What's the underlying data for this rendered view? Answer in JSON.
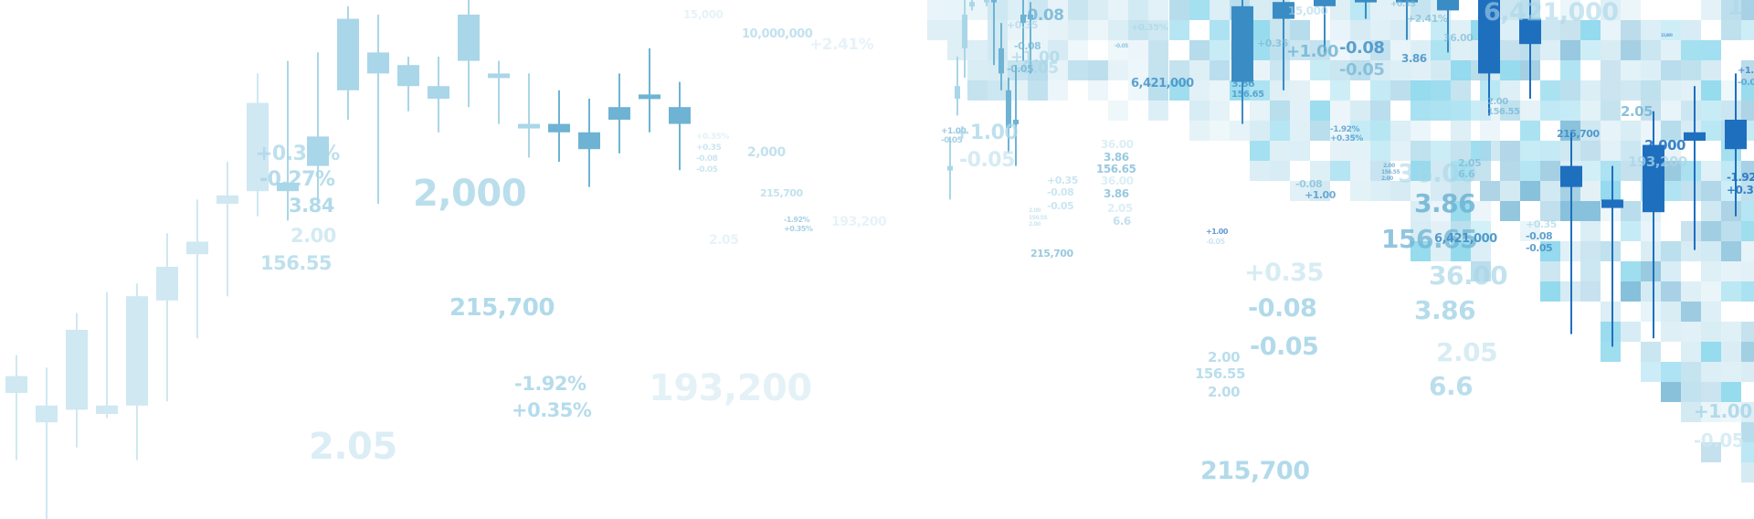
{
  "palette": {
    "pale": "#cfe8f2",
    "light": "#a9d6e8",
    "mid": "#6eb3d3",
    "deep": "#3a8cc4",
    "strong": "#1f6fbf",
    "cyan": "#7fd3ea"
  },
  "candle_series_left": [
    {
      "o": 3.0,
      "c": 3.4,
      "h": 3.9,
      "l": 1.4
    },
    {
      "o": 2.7,
      "c": 2.3,
      "h": 3.6,
      "l": 0.0
    },
    {
      "o": 2.6,
      "c": 4.5,
      "h": 4.9,
      "l": 1.7
    },
    {
      "o": 2.5,
      "c": 2.7,
      "h": 5.4,
      "l": 2.4
    },
    {
      "o": 2.7,
      "c": 5.3,
      "h": 5.6,
      "l": 1.4
    },
    {
      "o": 5.2,
      "c": 6.0,
      "h": 6.8,
      "l": 2.8
    },
    {
      "o": 6.3,
      "c": 6.6,
      "h": 7.6,
      "l": 4.3
    },
    {
      "o": 7.5,
      "c": 7.7,
      "h": 8.5,
      "l": 5.3
    },
    {
      "o": 7.8,
      "c": 9.9,
      "h": 10.6,
      "l": 7.2
    },
    {
      "o": 8.0,
      "c": 7.8,
      "h": 10.9,
      "l": 7.1
    },
    {
      "o": 8.4,
      "c": 9.1,
      "h": 11.1,
      "l": 7.6
    },
    {
      "o": 10.2,
      "c": 11.9,
      "h": 12.2,
      "l": 9.5
    },
    {
      "o": 11.1,
      "c": 10.6,
      "h": 12.0,
      "l": 7.5
    },
    {
      "o": 10.8,
      "c": 10.3,
      "h": 11.0,
      "l": 9.7
    },
    {
      "o": 10.3,
      "c": 10.0,
      "h": 11.0,
      "l": 9.2
    },
    {
      "o": 10.9,
      "c": 12.0,
      "h": 12.4,
      "l": 9.8
    },
    {
      "o": 10.6,
      "c": 10.5,
      "h": 10.9,
      "l": 9.4
    },
    {
      "o": 9.4,
      "c": 9.3,
      "h": 10.6,
      "l": 8.6
    },
    {
      "o": 9.4,
      "c": 9.2,
      "h": 10.2,
      "l": 8.5
    },
    {
      "o": 9.2,
      "c": 8.8,
      "h": 10.0,
      "l": 7.9
    },
    {
      "o": 9.5,
      "c": 9.8,
      "h": 10.6,
      "l": 8.7
    },
    {
      "o": 10.0,
      "c": 10.1,
      "h": 11.2,
      "l": 9.2
    },
    {
      "o": 9.8,
      "c": 9.4,
      "h": 10.4,
      "l": 8.3
    }
  ],
  "candle_series_mid": [
    {
      "o": 8.4,
      "c": 8.3,
      "h": 9.1,
      "l": 7.6
    },
    {
      "o": 10.0,
      "c": 10.3,
      "h": 11.0,
      "l": 9.6
    },
    {
      "o": 11.2,
      "c": 12.0,
      "h": 12.4,
      "l": 10.5
    },
    {
      "o": 12.3,
      "c": 12.3,
      "h": 12.4,
      "l": 12.1
    },
    {
      "o": 12.6,
      "c": 12.5,
      "h": 12.8,
      "l": 12.4
    },
    {
      "o": 12.4,
      "c": 12.4,
      "h": 12.6,
      "l": 12.2
    },
    {
      "o": 12.4,
      "c": 12.3,
      "h": 12.4,
      "l": 10.8
    },
    {
      "o": 11.2,
      "c": 10.6,
      "h": 11.8,
      "l": 10.2
    },
    {
      "o": 10.2,
      "c": 9.3,
      "h": 10.5,
      "l": 8.7
    },
    {
      "o": 9.5,
      "c": 9.4,
      "h": 10.8,
      "l": 8.4
    },
    {
      "o": 12.0,
      "c": 11.8,
      "h": 12.4,
      "l": 10.9
    },
    {
      "o": 12.0,
      "c": 12.0,
      "h": 12.3,
      "l": 10.6
    }
  ],
  "candle_series_right": [
    {
      "o": 12.2,
      "c": 10.4,
      "h": 12.4,
      "l": 9.4
    },
    {
      "o": 12.3,
      "c": 11.9,
      "h": 12.4,
      "l": 10.2
    },
    {
      "o": 12.4,
      "c": 12.2,
      "h": 12.4,
      "l": 11.1
    },
    {
      "o": 12.4,
      "c": 12.3,
      "h": 12.4,
      "l": 11.9
    },
    {
      "o": 12.4,
      "c": 12.3,
      "h": 12.4,
      "l": 11.4
    },
    {
      "o": 12.4,
      "c": 12.1,
      "h": 12.4,
      "l": 11.1
    },
    {
      "o": 12.4,
      "c": 10.6,
      "h": 12.4,
      "l": 9.6
    },
    {
      "o": 11.9,
      "c": 11.3,
      "h": 12.4,
      "l": 10.0
    },
    {
      "o": 8.4,
      "c": 7.9,
      "h": 9.2,
      "l": 4.4
    },
    {
      "o": 7.6,
      "c": 7.4,
      "h": 8.4,
      "l": 4.1
    },
    {
      "o": 8.9,
      "c": 7.3,
      "h": 9.7,
      "l": 4.3
    },
    {
      "o": 9.2,
      "c": 9.0,
      "h": 10.3,
      "l": 6.4
    },
    {
      "o": 9.5,
      "c": 8.8,
      "h": 10.6,
      "l": 7.2
    }
  ],
  "labels": [
    {
      "text": "+0.35%",
      "size": 22,
      "tone": "light",
      "op": 0.75
    },
    {
      "text": "-0.27%",
      "size": 22,
      "tone": "light",
      "op": 0.85
    },
    {
      "text": "3.84",
      "size": 21,
      "tone": "light",
      "op": 0.9
    },
    {
      "text": "2.00",
      "size": 21,
      "tone": "pale",
      "op": 0.9
    },
    {
      "text": "156.55",
      "size": 21,
      "tone": "light",
      "op": 0.75
    },
    {
      "text": "2,000",
      "size": 40,
      "tone": "light",
      "op": 0.8
    },
    {
      "text": "215,700",
      "size": 26,
      "tone": "light",
      "op": 0.9
    },
    {
      "text": "-1.92%",
      "size": 21,
      "tone": "light",
      "op": 0.85
    },
    {
      "text": "+0.35%",
      "size": 21,
      "tone": "light",
      "op": 0.85
    },
    {
      "text": "2.05",
      "size": 40,
      "tone": "pale",
      "op": 0.75
    },
    {
      "text": "193,200",
      "size": 40,
      "tone": "pale",
      "op": 0.55
    },
    {
      "text": "15,000",
      "size": 12,
      "tone": "pale",
      "op": 0.5
    },
    {
      "text": "10,000,000",
      "size": 13,
      "tone": "light",
      "op": 0.7
    },
    {
      "text": "+2.41%",
      "size": 17,
      "tone": "pale",
      "op": 0.5
    },
    {
      "text": "+0.35%",
      "size": 9,
      "tone": "pale",
      "op": 0.6
    },
    {
      "text": "+0.35",
      "size": 9,
      "tone": "light",
      "op": 0.6
    },
    {
      "text": "-0.08",
      "size": 9,
      "tone": "light",
      "op": 0.6
    },
    {
      "text": "-0.05",
      "size": 9,
      "tone": "light",
      "op": 0.6
    },
    {
      "text": "2,000",
      "size": 14,
      "tone": "light",
      "op": 0.7
    },
    {
      "text": "215,700",
      "size": 11,
      "tone": "light",
      "op": 0.7
    },
    {
      "text": "-1.92%",
      "size": 8,
      "tone": "mid",
      "op": 0.6
    },
    {
      "text": "+0.35%",
      "size": 8,
      "tone": "mid",
      "op": 0.6
    },
    {
      "text": "193,200",
      "size": 14,
      "tone": "pale",
      "op": 0.5
    },
    {
      "text": "2.05",
      "size": 14,
      "tone": "pale",
      "op": 0.5
    },
    {
      "text": "2.00",
      "size": 6,
      "tone": "light",
      "op": 0.6
    },
    {
      "text": "156.55",
      "size": 6,
      "tone": "light",
      "op": 0.6
    },
    {
      "text": "2.00",
      "size": 6,
      "tone": "light",
      "op": 0.6
    },
    {
      "text": "+0.35",
      "size": 11,
      "tone": "light",
      "op": 0.6
    },
    {
      "text": "-0.08",
      "size": 11,
      "tone": "light",
      "op": 0.6
    },
    {
      "text": "-0.05",
      "size": 11,
      "tone": "light",
      "op": 0.6
    },
    {
      "text": "+1.00",
      "size": 9,
      "tone": "mid",
      "op": 0.7
    },
    {
      "text": "-0.05",
      "size": 9,
      "tone": "mid",
      "op": 0.6
    },
    {
      "text": "+1.00",
      "size": 22,
      "tone": "light",
      "op": 0.75
    },
    {
      "text": "-0.05",
      "size": 22,
      "tone": "pale",
      "op": 0.85
    },
    {
      "text": "-0.08",
      "size": 17,
      "tone": "mid",
      "op": 0.8
    },
    {
      "text": "-0.05",
      "size": 17,
      "tone": "light",
      "op": 0.6
    },
    {
      "text": "+1.00",
      "size": 17,
      "tone": "light",
      "op": 0.7
    },
    {
      "text": "+0.35",
      "size": 11,
      "tone": "light",
      "op": 0.7
    },
    {
      "text": "-0.08",
      "size": 11,
      "tone": "mid",
      "op": 0.7
    },
    {
      "text": "-0.05",
      "size": 11,
      "tone": "mid",
      "op": 0.7
    },
    {
      "text": "215,700",
      "size": 11,
      "tone": "mid",
      "op": 0.7
    },
    {
      "text": "36.00",
      "size": 12,
      "tone": "pale",
      "op": 0.7
    },
    {
      "text": "3.86",
      "size": 12,
      "tone": "mid",
      "op": 0.7
    },
    {
      "text": "156.65",
      "size": 12,
      "tone": "mid",
      "op": 0.7
    },
    {
      "text": "36.00",
      "size": 12,
      "tone": "pale",
      "op": 0.7
    },
    {
      "text": "3.86",
      "size": 12,
      "tone": "mid",
      "op": 0.7
    },
    {
      "text": "2.05",
      "size": 12,
      "tone": "pale",
      "op": 0.7
    },
    {
      "text": "6.6",
      "size": 12,
      "tone": "light",
      "op": 0.7
    },
    {
      "text": "+0.35%",
      "size": 10,
      "tone": "light",
      "op": 0.7
    },
    {
      "text": "-0.05",
      "size": 6,
      "tone": "mid",
      "op": 0.7
    },
    {
      "text": "6,421,000",
      "size": 13,
      "tone": "deep",
      "op": 0.8
    },
    {
      "text": "+1.00",
      "size": 8,
      "tone": "strong",
      "op": 0.7
    },
    {
      "text": "-0.05",
      "size": 8,
      "tone": "light",
      "op": 0.6
    },
    {
      "text": "+0.35",
      "size": 27,
      "tone": "pale",
      "op": 0.8
    },
    {
      "text": "-0.08",
      "size": 27,
      "tone": "light",
      "op": 0.9
    },
    {
      "text": "-0.05",
      "size": 27,
      "tone": "light",
      "op": 0.9
    },
    {
      "text": "2.00",
      "size": 15,
      "tone": "light",
      "op": 0.8
    },
    {
      "text": "156.55",
      "size": 15,
      "tone": "light",
      "op": 0.8
    },
    {
      "text": "2.00",
      "size": 15,
      "tone": "light",
      "op": 0.8
    },
    {
      "text": "215,700",
      "size": 27,
      "tone": "light",
      "op": 0.9
    },
    {
      "text": "15,000",
      "size": 12,
      "tone": "light",
      "op": 0.6
    },
    {
      "text": "+0.35",
      "size": 11,
      "tone": "mid",
      "op": 0.6
    },
    {
      "text": "+1.00",
      "size": 18,
      "tone": "mid",
      "op": 0.8
    },
    {
      "text": "-0.08",
      "size": 18,
      "tone": "deep",
      "op": 0.8
    },
    {
      "text": "-0.05",
      "size": 18,
      "tone": "mid",
      "op": 0.7
    },
    {
      "text": "3.86",
      "size": 12,
      "tone": "deep",
      "op": 0.8
    },
    {
      "text": "3.86",
      "size": 11,
      "tone": "deep",
      "op": 0.7
    },
    {
      "text": "156.65",
      "size": 10,
      "tone": "deep",
      "op": 0.7
    },
    {
      "text": "-1.92%",
      "size": 9,
      "tone": "deep",
      "op": 0.7
    },
    {
      "text": "+0.35%",
      "size": 9,
      "tone": "deep",
      "op": 0.7
    },
    {
      "text": "-0.08",
      "size": 11,
      "tone": "mid",
      "op": 0.6
    },
    {
      "text": "+1.00",
      "size": 11,
      "tone": "deep",
      "op": 0.7
    },
    {
      "text": "36.00",
      "size": 28,
      "tone": "light",
      "op": 0.6
    },
    {
      "text": "3.86",
      "size": 28,
      "tone": "mid",
      "op": 0.85
    },
    {
      "text": "156.65",
      "size": 28,
      "tone": "mid",
      "op": 0.75
    },
    {
      "text": "6,421,000",
      "size": 13,
      "tone": "deep",
      "op": 0.85
    },
    {
      "text": "36.00",
      "size": 28,
      "tone": "light",
      "op": 0.7
    },
    {
      "text": "3.86",
      "size": 28,
      "tone": "light",
      "op": 0.85
    },
    {
      "text": "2.05",
      "size": 28,
      "tone": "pale",
      "op": 0.8
    },
    {
      "text": "6.6",
      "size": 28,
      "tone": "light",
      "op": 0.8
    },
    {
      "text": "2.05",
      "size": 11,
      "tone": "mid",
      "op": 0.6
    },
    {
      "text": "6.6",
      "size": 11,
      "tone": "mid",
      "op": 0.6
    },
    {
      "text": "36.00",
      "size": 11,
      "tone": "mid",
      "op": 0.6
    },
    {
      "text": "2.00",
      "size": 10,
      "tone": "mid",
      "op": 0.7
    },
    {
      "text": "156.55",
      "size": 10,
      "tone": "mid",
      "op": 0.7
    },
    {
      "text": "2.00",
      "size": 6,
      "tone": "deep",
      "op": 0.6
    },
    {
      "text": "156.55",
      "size": 6,
      "tone": "deep",
      "op": 0.6
    },
    {
      "text": "2.00",
      "size": 6,
      "tone": "deep",
      "op": 0.6
    },
    {
      "text": "+0.35",
      "size": 11,
      "tone": "light",
      "op": 0.7
    },
    {
      "text": "-0.08",
      "size": 11,
      "tone": "deep",
      "op": 0.8
    },
    {
      "text": "-0.05",
      "size": 11,
      "tone": "deep",
      "op": 0.8
    },
    {
      "text": "215,700",
      "size": 11,
      "tone": "deep",
      "op": 0.85
    },
    {
      "text": "+2.41%",
      "size": 11,
      "tone": "mid",
      "op": 0.6
    },
    {
      "text": "+0.35",
      "size": 9,
      "tone": "mid",
      "op": 0.6
    },
    {
      "text": "6,421,000",
      "size": 27,
      "tone": "light",
      "op": 0.6
    },
    {
      "text": "2,000",
      "size": 15,
      "tone": "strong",
      "op": 0.85
    },
    {
      "text": "193,200",
      "size": 15,
      "tone": "light",
      "op": 0.75
    },
    {
      "text": "2.05",
      "size": 15,
      "tone": "mid",
      "op": 0.8
    },
    {
      "text": "-1.92",
      "size": 12,
      "tone": "strong",
      "op": 0.85
    },
    {
      "text": "+0.35",
      "size": 12,
      "tone": "strong",
      "op": 0.85
    },
    {
      "text": "+1.00",
      "size": 20,
      "tone": "light",
      "op": 0.85
    },
    {
      "text": "-0.05",
      "size": 20,
      "tone": "pale",
      "op": 0.8
    },
    {
      "text": "15,000",
      "size": 4,
      "tone": "strong",
      "op": 0.6
    },
    {
      "text": "+1.00",
      "size": 10,
      "tone": "strong",
      "op": 0.7
    },
    {
      "text": "-0.05",
      "size": 10,
      "tone": "deep",
      "op": 0.6
    },
    {
      "text": "15",
      "size": 27,
      "tone": "light",
      "op": 0.55
    }
  ]
}
